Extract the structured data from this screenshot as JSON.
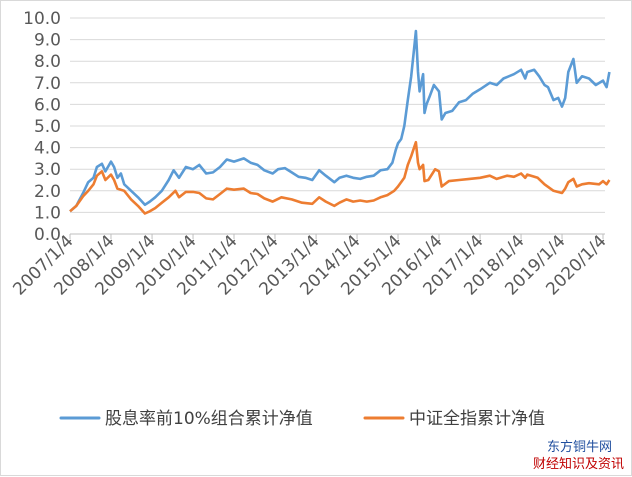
{
  "chart_data": {
    "type": "line",
    "title": "",
    "xlabel": "",
    "ylabel": "",
    "ylim": [
      0,
      10
    ],
    "y_ticks": [
      "0.0",
      "1.0",
      "2.0",
      "3.0",
      "4.0",
      "5.0",
      "6.0",
      "7.0",
      "8.0",
      "9.0",
      "10.0"
    ],
    "x_ticks": [
      "2007/1/4",
      "2008/1/4",
      "2009/1/4",
      "2010/1/4",
      "2011/1/4",
      "2012/1/4",
      "2013/1/4",
      "2014/1/4",
      "2015/1/4",
      "2016/1/4",
      "2017/1/4",
      "2018/1/4",
      "2019/1/4",
      "2020/1/4"
    ],
    "x_range": [
      "2007/1/4",
      "2020/1/4"
    ],
    "grid": "horizontal",
    "legend_position": "bottom",
    "series": [
      {
        "name": "股息率前10%组合累计净值",
        "color": "#5b9bd5",
        "points": [
          [
            "2007/1/4",
            1.05
          ],
          [
            "2007/3/1",
            1.3
          ],
          [
            "2007/5/1",
            1.9
          ],
          [
            "2007/6/15",
            2.4
          ],
          [
            "2007/8/1",
            2.6
          ],
          [
            "2007/9/1",
            3.1
          ],
          [
            "2007/10/15",
            3.25
          ],
          [
            "2007/11/15",
            2.9
          ],
          [
            "2008/1/4",
            3.35
          ],
          [
            "2008/2/1",
            3.1
          ],
          [
            "2008/3/1",
            2.6
          ],
          [
            "2008/4/1",
            2.8
          ],
          [
            "2008/5/1",
            2.3
          ],
          [
            "2008/7/1",
            2.0
          ],
          [
            "2008/9/1",
            1.7
          ],
          [
            "2008/11/1",
            1.35
          ],
          [
            "2008/12/15",
            1.5
          ],
          [
            "2009/2/1",
            1.7
          ],
          [
            "2009/4/1",
            2.0
          ],
          [
            "2009/6/1",
            2.5
          ],
          [
            "2009/7/15",
            2.95
          ],
          [
            "2009/9/1",
            2.6
          ],
          [
            "2009/11/1",
            3.1
          ],
          [
            "2010/1/4",
            3.0
          ],
          [
            "2010/3/1",
            3.2
          ],
          [
            "2010/5/1",
            2.8
          ],
          [
            "2010/7/1",
            2.85
          ],
          [
            "2010/9/1",
            3.1
          ],
          [
            "2010/11/1",
            3.45
          ],
          [
            "2011/1/4",
            3.35
          ],
          [
            "2011/4/1",
            3.5
          ],
          [
            "2011/6/1",
            3.3
          ],
          [
            "2011/8/1",
            3.2
          ],
          [
            "2011/10/1",
            2.95
          ],
          [
            "2011/12/15",
            2.8
          ],
          [
            "2012/2/1",
            3.0
          ],
          [
            "2012/4/1",
            3.05
          ],
          [
            "2012/6/1",
            2.85
          ],
          [
            "2012/8/1",
            2.65
          ],
          [
            "2012/10/1",
            2.6
          ],
          [
            "2012/12/1",
            2.5
          ],
          [
            "2013/2/1",
            2.95
          ],
          [
            "2013/4/1",
            2.7
          ],
          [
            "2013/6/15",
            2.4
          ],
          [
            "2013/8/1",
            2.6
          ],
          [
            "2013/10/1",
            2.7
          ],
          [
            "2013/12/1",
            2.6
          ],
          [
            "2014/2/1",
            2.55
          ],
          [
            "2014/4/1",
            2.65
          ],
          [
            "2014/6/1",
            2.7
          ],
          [
            "2014/8/1",
            2.95
          ],
          [
            "2014/10/1",
            3.0
          ],
          [
            "2014/11/15",
            3.3
          ],
          [
            "2014/12/15",
            3.9
          ],
          [
            "2015/1/4",
            4.2
          ],
          [
            "2015/2/1",
            4.4
          ],
          [
            "2015/3/1",
            5.0
          ],
          [
            "2015/4/1",
            6.2
          ],
          [
            "2015/5/1",
            7.3
          ],
          [
            "2015/6/1",
            8.8
          ],
          [
            "2015/6/12",
            9.4
          ],
          [
            "2015/7/1",
            7.5
          ],
          [
            "2015/7/15",
            6.6
          ],
          [
            "2015/8/15",
            7.4
          ],
          [
            "2015/8/28",
            5.6
          ],
          [
            "2015/9/15",
            6.0
          ],
          [
            "2015/10/15",
            6.4
          ],
          [
            "2015/11/20",
            6.9
          ],
          [
            "2016/1/4",
            6.6
          ],
          [
            "2016/1/28",
            5.3
          ],
          [
            "2016/3/1",
            5.6
          ],
          [
            "2016/5/1",
            5.7
          ],
          [
            "2016/7/1",
            6.1
          ],
          [
            "2016/9/1",
            6.2
          ],
          [
            "2016/11/1",
            6.5
          ],
          [
            "2017/1/4",
            6.7
          ],
          [
            "2017/4/1",
            7.0
          ],
          [
            "2017/6/1",
            6.9
          ],
          [
            "2017/8/1",
            7.2
          ],
          [
            "2017/11/1",
            7.4
          ],
          [
            "2018/1/4",
            7.6
          ],
          [
            "2018/2/10",
            7.2
          ],
          [
            "2018/3/1",
            7.5
          ],
          [
            "2018/5/1",
            7.6
          ],
          [
            "2018/6/15",
            7.3
          ],
          [
            "2018/8/1",
            6.9
          ],
          [
            "2018/9/1",
            6.8
          ],
          [
            "2018/10/20",
            6.2
          ],
          [
            "2018/12/1",
            6.3
          ],
          [
            "2019/1/4",
            5.9
          ],
          [
            "2019/2/1",
            6.3
          ],
          [
            "2019/3/1",
            7.5
          ],
          [
            "2019/4/15",
            8.1
          ],
          [
            "2019/5/15",
            7.0
          ],
          [
            "2019/7/1",
            7.3
          ],
          [
            "2019/9/1",
            7.2
          ],
          [
            "2019/11/1",
            6.9
          ],
          [
            "2020/1/4",
            7.1
          ],
          [
            "2020/2/5",
            6.8
          ],
          [
            "2020/3/1",
            7.5
          ]
        ]
      },
      {
        "name": "中证全指累计净值",
        "color": "#ed7d31",
        "points": [
          [
            "2007/1/4",
            1.05
          ],
          [
            "2007/3/1",
            1.3
          ],
          [
            "2007/5/1",
            1.75
          ],
          [
            "2007/6/15",
            2.0
          ],
          [
            "2007/8/1",
            2.3
          ],
          [
            "2007/9/1",
            2.7
          ],
          [
            "2007/10/15",
            2.9
          ],
          [
            "2007/11/15",
            2.5
          ],
          [
            "2008/1/4",
            2.75
          ],
          [
            "2008/2/1",
            2.5
          ],
          [
            "2008/3/1",
            2.1
          ],
          [
            "2008/5/1",
            2.0
          ],
          [
            "2008/7/1",
            1.6
          ],
          [
            "2008/9/1",
            1.3
          ],
          [
            "2008/11/1",
            0.95
          ],
          [
            "2008/12/15",
            1.05
          ],
          [
            "2009/2/1",
            1.2
          ],
          [
            "2009/4/1",
            1.45
          ],
          [
            "2009/6/1",
            1.7
          ],
          [
            "2009/7/31",
            2.0
          ],
          [
            "2009/9/1",
            1.7
          ],
          [
            "2009/11/1",
            1.95
          ],
          [
            "2010/1/4",
            1.95
          ],
          [
            "2010/3/1",
            1.9
          ],
          [
            "2010/5/1",
            1.65
          ],
          [
            "2010/7/1",
            1.6
          ],
          [
            "2010/9/1",
            1.85
          ],
          [
            "2010/11/1",
            2.1
          ],
          [
            "2011/1/4",
            2.05
          ],
          [
            "2011/4/1",
            2.1
          ],
          [
            "2011/6/1",
            1.9
          ],
          [
            "2011/8/1",
            1.85
          ],
          [
            "2011/10/1",
            1.65
          ],
          [
            "2011/12/15",
            1.5
          ],
          [
            "2012/3/1",
            1.7
          ],
          [
            "2012/6/1",
            1.6
          ],
          [
            "2012/9/1",
            1.45
          ],
          [
            "2012/12/1",
            1.4
          ],
          [
            "2013/2/1",
            1.7
          ],
          [
            "2013/4/1",
            1.5
          ],
          [
            "2013/6/15",
            1.3
          ],
          [
            "2013/8/1",
            1.45
          ],
          [
            "2013/10/1",
            1.6
          ],
          [
            "2013/12/1",
            1.5
          ],
          [
            "2014/2/1",
            1.55
          ],
          [
            "2014/4/1",
            1.5
          ],
          [
            "2014/6/1",
            1.55
          ],
          [
            "2014/8/1",
            1.7
          ],
          [
            "2014/10/1",
            1.8
          ],
          [
            "2014/12/1",
            2.0
          ],
          [
            "2015/1/4",
            2.2
          ],
          [
            "2015/3/1",
            2.6
          ],
          [
            "2015/4/1",
            3.2
          ],
          [
            "2015/5/1",
            3.6
          ],
          [
            "2015/6/12",
            4.25
          ],
          [
            "2015/7/1",
            3.3
          ],
          [
            "2015/7/15",
            3.0
          ],
          [
            "2015/8/15",
            3.2
          ],
          [
            "2015/8/28",
            2.45
          ],
          [
            "2015/10/1",
            2.5
          ],
          [
            "2015/12/1",
            3.0
          ],
          [
            "2016/1/4",
            2.9
          ],
          [
            "2016/1/28",
            2.2
          ],
          [
            "2016/4/1",
            2.45
          ],
          [
            "2016/7/1",
            2.5
          ],
          [
            "2016/10/1",
            2.55
          ],
          [
            "2017/1/4",
            2.6
          ],
          [
            "2017/4/1",
            2.7
          ],
          [
            "2017/6/1",
            2.55
          ],
          [
            "2017/9/1",
            2.7
          ],
          [
            "2017/11/1",
            2.65
          ],
          [
            "2018/1/4",
            2.8
          ],
          [
            "2018/2/10",
            2.6
          ],
          [
            "2018/3/1",
            2.75
          ],
          [
            "2018/6/1",
            2.6
          ],
          [
            "2018/8/1",
            2.3
          ],
          [
            "2018/10/20",
            2.0
          ],
          [
            "2019/1/4",
            1.9
          ],
          [
            "2019/2/1",
            2.1
          ],
          [
            "2019/3/1",
            2.4
          ],
          [
            "2019/4/15",
            2.55
          ],
          [
            "2019/5/15",
            2.2
          ],
          [
            "2019/7/1",
            2.3
          ],
          [
            "2019/9/1",
            2.35
          ],
          [
            "2019/12/1",
            2.3
          ],
          [
            "2020/1/4",
            2.45
          ],
          [
            "2020/2/5",
            2.3
          ],
          [
            "2020/3/1",
            2.5
          ]
        ]
      }
    ]
  },
  "watermark": {
    "line1": "东方铜牛网",
    "line2": "财经知识及资讯",
    "line1_color": "#1f4e9e",
    "line2_color": "#c00000"
  }
}
